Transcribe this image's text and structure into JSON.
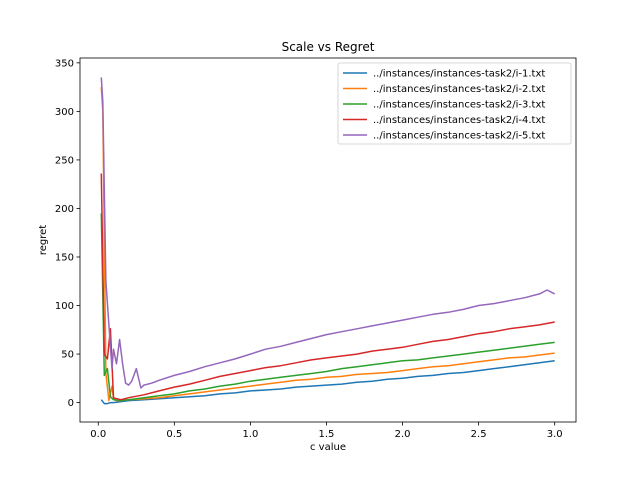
{
  "chart_data": {
    "type": "line",
    "title": "Scale vs Regret",
    "xlabel": "c value",
    "ylabel": "regret",
    "xlim": [
      -0.12,
      3.14
    ],
    "ylim": [
      -20,
      355
    ],
    "xticks": [
      0.0,
      0.5,
      1.0,
      1.5,
      2.0,
      2.5,
      3.0
    ],
    "xtick_labels": [
      "0.0",
      "0.5",
      "1.0",
      "1.5",
      "2.0",
      "2.5",
      "3.0"
    ],
    "yticks": [
      0,
      50,
      100,
      150,
      200,
      250,
      300,
      350
    ],
    "ytick_labels": [
      "0",
      "50",
      "100",
      "150",
      "200",
      "250",
      "300",
      "350"
    ],
    "grid": false,
    "legend_position": "top-right",
    "series": [
      {
        "name": "../instances/instances-task2/i-1.txt",
        "color": "#1f77b4",
        "x": [
          0.02,
          0.04,
          0.06,
          0.08,
          0.1,
          0.15,
          0.2,
          0.3,
          0.4,
          0.5,
          0.6,
          0.7,
          0.8,
          0.9,
          1.0,
          1.1,
          1.2,
          1.3,
          1.4,
          1.5,
          1.6,
          1.7,
          1.8,
          1.9,
          2.0,
          2.1,
          2.2,
          2.3,
          2.4,
          2.5,
          2.6,
          2.7,
          2.8,
          2.9,
          3.0
        ],
        "y": [
          3,
          -1,
          -1,
          0,
          0,
          1,
          2,
          3,
          4,
          5,
          6,
          7,
          9,
          10,
          12,
          13,
          14,
          16,
          17,
          18,
          19,
          21,
          22,
          24,
          25,
          27,
          28,
          30,
          31,
          33,
          35,
          37,
          39,
          41,
          43
        ]
      },
      {
        "name": "../instances/instances-task2/i-2.txt",
        "color": "#ff7f0e",
        "x": [
          0.02,
          0.03,
          0.05,
          0.07,
          0.09,
          0.1,
          0.12,
          0.15,
          0.2,
          0.3,
          0.4,
          0.5,
          0.6,
          0.7,
          0.8,
          0.9,
          1.0,
          1.1,
          1.2,
          1.3,
          1.4,
          1.5,
          1.6,
          1.7,
          1.8,
          1.9,
          2.0,
          2.1,
          2.2,
          2.3,
          2.4,
          2.5,
          2.6,
          2.7,
          2.8,
          2.9,
          3.0
        ],
        "y": [
          325,
          300,
          30,
          2,
          17,
          4,
          2,
          2,
          3,
          4,
          5,
          7,
          9,
          11,
          13,
          15,
          17,
          19,
          21,
          23,
          24,
          26,
          27,
          29,
          30,
          31,
          33,
          35,
          37,
          38,
          40,
          42,
          44,
          46,
          47,
          49,
          51
        ]
      },
      {
        "name": "../instances/instances-task2/i-3.txt",
        "color": "#2ca02c",
        "x": [
          0.02,
          0.04,
          0.06,
          0.08,
          0.1,
          0.15,
          0.2,
          0.3,
          0.4,
          0.5,
          0.6,
          0.7,
          0.8,
          0.9,
          1.0,
          1.1,
          1.2,
          1.3,
          1.4,
          1.5,
          1.6,
          1.7,
          1.8,
          1.9,
          2.0,
          2.1,
          2.2,
          2.3,
          2.4,
          2.5,
          2.6,
          2.7,
          2.8,
          2.9,
          3.0
        ],
        "y": [
          195,
          28,
          35,
          6,
          3,
          2,
          3,
          5,
          7,
          9,
          12,
          14,
          17,
          19,
          22,
          24,
          26,
          28,
          30,
          32,
          35,
          37,
          39,
          41,
          43,
          44,
          46,
          48,
          50,
          52,
          54,
          56,
          58,
          60,
          62
        ]
      },
      {
        "name": "../instances/instances-task2/i-4.txt",
        "color": "#d62728",
        "x": [
          0.02,
          0.04,
          0.06,
          0.08,
          0.1,
          0.12,
          0.15,
          0.2,
          0.3,
          0.4,
          0.5,
          0.6,
          0.7,
          0.8,
          0.9,
          1.0,
          1.1,
          1.2,
          1.3,
          1.4,
          1.5,
          1.6,
          1.7,
          1.8,
          1.9,
          2.0,
          2.1,
          2.2,
          2.3,
          2.4,
          2.5,
          2.6,
          2.7,
          2.8,
          2.9,
          3.0
        ],
        "y": [
          236,
          50,
          45,
          76,
          5,
          4,
          3,
          5,
          8,
          12,
          16,
          19,
          23,
          27,
          30,
          33,
          36,
          38,
          41,
          44,
          46,
          48,
          50,
          53,
          55,
          57,
          60,
          63,
          65,
          68,
          71,
          73,
          76,
          78,
          80,
          83
        ]
      },
      {
        "name": "../instances/instances-task2/i-5.txt",
        "color": "#9467bd",
        "x": [
          0.02,
          0.03,
          0.05,
          0.07,
          0.09,
          0.1,
          0.12,
          0.14,
          0.16,
          0.18,
          0.2,
          0.22,
          0.25,
          0.28,
          0.3,
          0.35,
          0.4,
          0.5,
          0.6,
          0.7,
          0.8,
          0.9,
          1.0,
          1.1,
          1.2,
          1.3,
          1.4,
          1.5,
          1.6,
          1.7,
          1.8,
          1.9,
          2.0,
          2.1,
          2.2,
          2.3,
          2.4,
          2.5,
          2.6,
          2.7,
          2.8,
          2.9,
          2.95,
          3.0
        ],
        "y": [
          335,
          310,
          125,
          80,
          35,
          55,
          40,
          65,
          40,
          20,
          18,
          22,
          35,
          15,
          18,
          20,
          23,
          28,
          32,
          37,
          41,
          45,
          50,
          55,
          58,
          62,
          66,
          70,
          73,
          76,
          79,
          82,
          85,
          88,
          91,
          93,
          96,
          100,
          102,
          105,
          108,
          112,
          116,
          112
        ]
      }
    ]
  }
}
